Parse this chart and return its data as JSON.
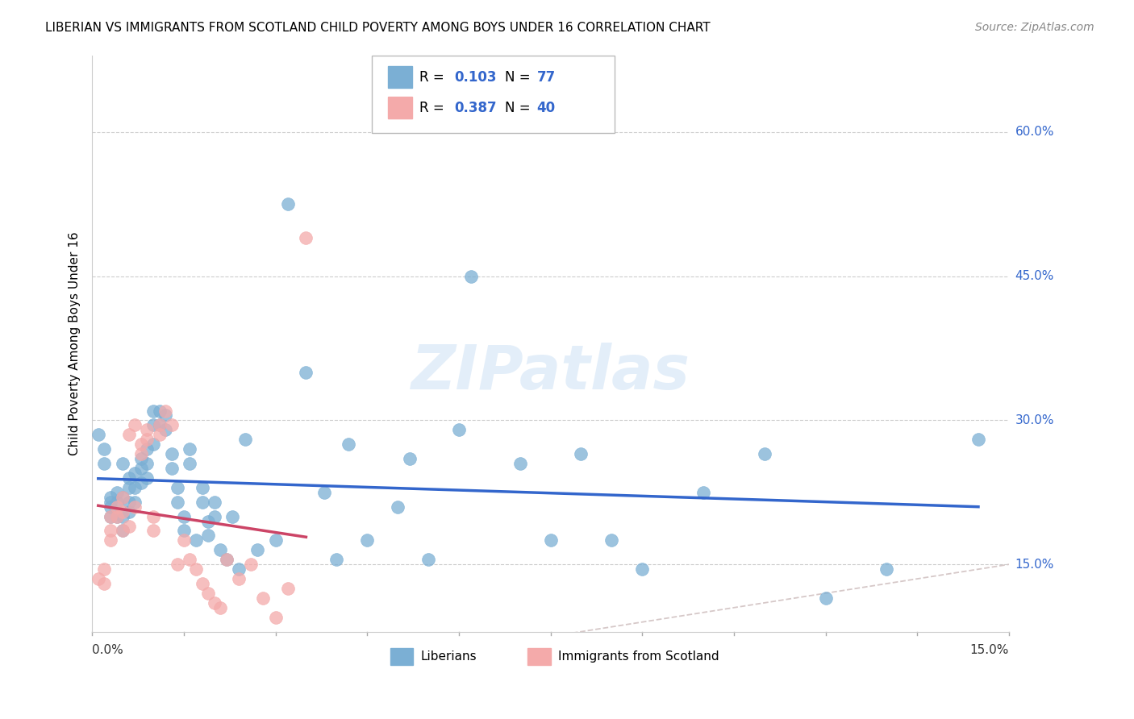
{
  "title": "LIBERIAN VS IMMIGRANTS FROM SCOTLAND CHILD POVERTY AMONG BOYS UNDER 16 CORRELATION CHART",
  "source": "Source: ZipAtlas.com",
  "ylabel": "Child Poverty Among Boys Under 16",
  "xlim": [
    0.0,
    0.15
  ],
  "ylim": [
    0.08,
    0.68
  ],
  "legend1_R": "0.103",
  "legend1_N": "77",
  "legend2_R": "0.387",
  "legend2_N": "40",
  "color_blue": "#7BAFD4",
  "color_pink": "#F4AAAA",
  "color_blue_text": "#3366CC",
  "color_trend_pink": "#CC4466",
  "watermark": "ZIPatlas",
  "ytick_labels": [
    "15.0%",
    "30.0%",
    "45.0%",
    "60.0%"
  ],
  "ytick_vals": [
    0.15,
    0.3,
    0.45,
    0.6
  ],
  "blue_scatter_x": [
    0.001,
    0.002,
    0.002,
    0.003,
    0.003,
    0.003,
    0.003,
    0.004,
    0.004,
    0.004,
    0.005,
    0.005,
    0.005,
    0.005,
    0.006,
    0.006,
    0.006,
    0.006,
    0.007,
    0.007,
    0.007,
    0.008,
    0.008,
    0.008,
    0.009,
    0.009,
    0.009,
    0.01,
    0.01,
    0.01,
    0.011,
    0.011,
    0.012,
    0.012,
    0.013,
    0.013,
    0.014,
    0.014,
    0.015,
    0.015,
    0.016,
    0.016,
    0.017,
    0.018,
    0.018,
    0.019,
    0.019,
    0.02,
    0.02,
    0.021,
    0.022,
    0.023,
    0.024,
    0.025,
    0.027,
    0.03,
    0.032,
    0.035,
    0.038,
    0.04,
    0.042,
    0.045,
    0.05,
    0.052,
    0.055,
    0.06,
    0.062,
    0.07,
    0.075,
    0.08,
    0.085,
    0.09,
    0.1,
    0.11,
    0.12,
    0.13,
    0.145
  ],
  "blue_scatter_y": [
    0.285,
    0.27,
    0.255,
    0.22,
    0.215,
    0.21,
    0.2,
    0.225,
    0.215,
    0.2,
    0.255,
    0.22,
    0.2,
    0.185,
    0.24,
    0.23,
    0.215,
    0.205,
    0.245,
    0.23,
    0.215,
    0.26,
    0.25,
    0.235,
    0.27,
    0.255,
    0.24,
    0.31,
    0.295,
    0.275,
    0.31,
    0.295,
    0.305,
    0.29,
    0.265,
    0.25,
    0.23,
    0.215,
    0.2,
    0.185,
    0.27,
    0.255,
    0.175,
    0.23,
    0.215,
    0.195,
    0.18,
    0.215,
    0.2,
    0.165,
    0.155,
    0.2,
    0.145,
    0.28,
    0.165,
    0.175,
    0.525,
    0.35,
    0.225,
    0.155,
    0.275,
    0.175,
    0.21,
    0.26,
    0.155,
    0.29,
    0.45,
    0.255,
    0.175,
    0.265,
    0.175,
    0.145,
    0.225,
    0.265,
    0.115,
    0.145,
    0.28
  ],
  "pink_scatter_x": [
    0.001,
    0.002,
    0.002,
    0.003,
    0.003,
    0.003,
    0.004,
    0.004,
    0.005,
    0.005,
    0.005,
    0.006,
    0.006,
    0.007,
    0.007,
    0.008,
    0.008,
    0.009,
    0.009,
    0.01,
    0.01,
    0.011,
    0.011,
    0.012,
    0.013,
    0.014,
    0.015,
    0.016,
    0.017,
    0.018,
    0.019,
    0.02,
    0.021,
    0.022,
    0.024,
    0.026,
    0.028,
    0.03,
    0.032,
    0.035
  ],
  "pink_scatter_y": [
    0.135,
    0.145,
    0.13,
    0.2,
    0.185,
    0.175,
    0.21,
    0.2,
    0.22,
    0.205,
    0.185,
    0.285,
    0.19,
    0.295,
    0.21,
    0.275,
    0.265,
    0.29,
    0.28,
    0.2,
    0.185,
    0.295,
    0.285,
    0.31,
    0.295,
    0.15,
    0.175,
    0.155,
    0.145,
    0.13,
    0.12,
    0.11,
    0.105,
    0.155,
    0.135,
    0.15,
    0.115,
    0.095,
    0.125,
    0.49
  ]
}
